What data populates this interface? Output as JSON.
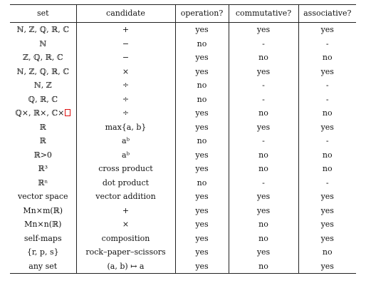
{
  "table": {
    "headers": [
      "set",
      "candidate",
      "operation?",
      "commutative?",
      "associative?"
    ],
    "rows": [
      {
        "set": "ℕ, ℤ, ℚ, ℝ, ℂ",
        "candidate": "+",
        "operation": "yes",
        "commutative": "yes",
        "associative": "yes"
      },
      {
        "set": "ℕ",
        "candidate": "−",
        "operation": "no",
        "commutative": "-",
        "associative": "-"
      },
      {
        "set": "ℤ, ℚ, ℝ, ℂ",
        "candidate": "−",
        "operation": "yes",
        "commutative": "no",
        "associative": "no"
      },
      {
        "set": "ℕ, ℤ, ℚ, ℝ, ℂ",
        "candidate": "×",
        "operation": "yes",
        "commutative": "yes",
        "associative": "yes"
      },
      {
        "set": "ℕ, ℤ",
        "candidate": "÷",
        "operation": "no",
        "commutative": "-",
        "associative": "-"
      },
      {
        "set": "ℚ, ℝ, ℂ",
        "candidate": "÷",
        "operation": "no",
        "commutative": "-",
        "associative": "-"
      },
      {
        "set": "ℚ×, ℝ×, ℂ×",
        "candidate": "÷",
        "operation": "yes",
        "commutative": "no",
        "associative": "no"
      },
      {
        "set": "ℝ",
        "candidate": "max{a, b}",
        "operation": "yes",
        "commutative": "yes",
        "associative": "yes"
      },
      {
        "set": "ℝ",
        "candidate": "aᵇ",
        "operation": "no",
        "commutative": "-",
        "associative": "-"
      },
      {
        "set": "ℝ>0",
        "candidate": "aᵇ",
        "operation": "yes",
        "commutative": "no",
        "associative": "no"
      },
      {
        "set": "ℝ³",
        "candidate": "cross product",
        "operation": "yes",
        "commutative": "no",
        "associative": "no"
      },
      {
        "set": "ℝⁿ",
        "candidate": "dot product",
        "operation": "no",
        "commutative": "-",
        "associative": "-"
      },
      {
        "set": "vector space",
        "candidate": "vector addition",
        "operation": "yes",
        "commutative": "yes",
        "associative": "yes"
      },
      {
        "set": "Mn×m(ℝ)",
        "candidate": "+",
        "operation": "yes",
        "commutative": "yes",
        "associative": "yes"
      },
      {
        "set": "Mn×n(ℝ)",
        "candidate": "×",
        "operation": "yes",
        "commutative": "no",
        "associative": "yes"
      },
      {
        "set": "self-maps",
        "candidate": "composition",
        "operation": "yes",
        "commutative": "no",
        "associative": "yes"
      },
      {
        "set": "{r, p, s}",
        "candidate": "rock–paper–scissors",
        "operation": "yes",
        "commutative": "yes",
        "associative": "no"
      },
      {
        "set": "any set",
        "candidate": "(a, b) ↦ a",
        "operation": "yes",
        "commutative": "no",
        "associative": "yes"
      }
    ]
  }
}
